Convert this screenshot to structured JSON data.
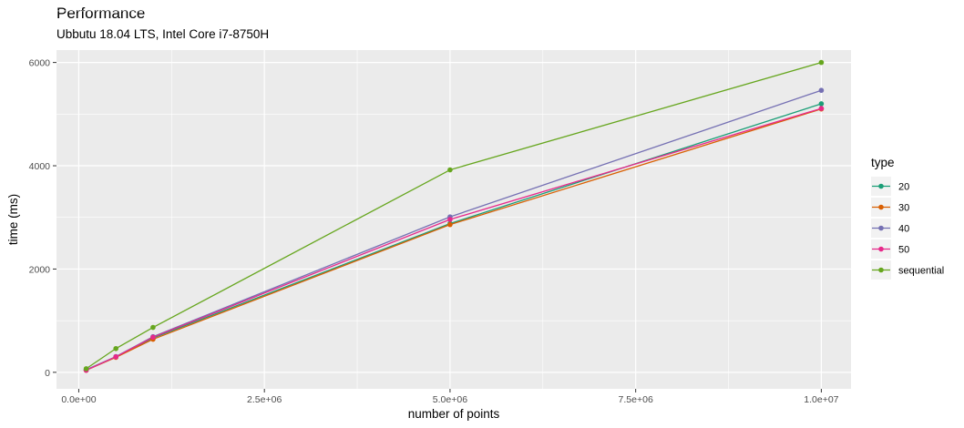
{
  "chart_data": {
    "type": "line",
    "title": "Performance",
    "subtitle": "Ubbutu 18.04 LTS, Intel Core i7-8750H",
    "xlabel": "number of points",
    "ylabel": "time (ms)",
    "xlim": [
      -300000,
      10400000
    ],
    "ylim": [
      -320,
      6240
    ],
    "x_ticks": [
      0,
      2500000,
      5000000,
      7500000,
      10000000
    ],
    "x_tick_labels": [
      "0.0e+00",
      "2.5e+06",
      "5.0e+06",
      "7.5e+06",
      "1.0e+07"
    ],
    "y_ticks": [
      0,
      2000,
      4000,
      6000
    ],
    "y_tick_labels": [
      "0",
      "2000",
      "4000",
      "6000"
    ],
    "grid": true,
    "legend": {
      "title": "type",
      "position": "right"
    },
    "x": [
      100000,
      500000,
      1000000,
      5000000,
      10000000
    ],
    "series": [
      {
        "name": "20",
        "color": "#1b9e77",
        "values": [
          45,
          300,
          665,
          2880,
          5200
        ]
      },
      {
        "name": "30",
        "color": "#d95f02",
        "values": [
          40,
          290,
          640,
          2860,
          5100
        ]
      },
      {
        "name": "40",
        "color": "#7570b3",
        "values": [
          50,
          305,
          690,
          3010,
          5460
        ]
      },
      {
        "name": "50",
        "color": "#e7298a",
        "values": [
          40,
          300,
          680,
          2960,
          5110
        ]
      },
      {
        "name": "sequential",
        "color": "#66a61e",
        "values": [
          70,
          460,
          870,
          3920,
          6000
        ]
      }
    ]
  }
}
